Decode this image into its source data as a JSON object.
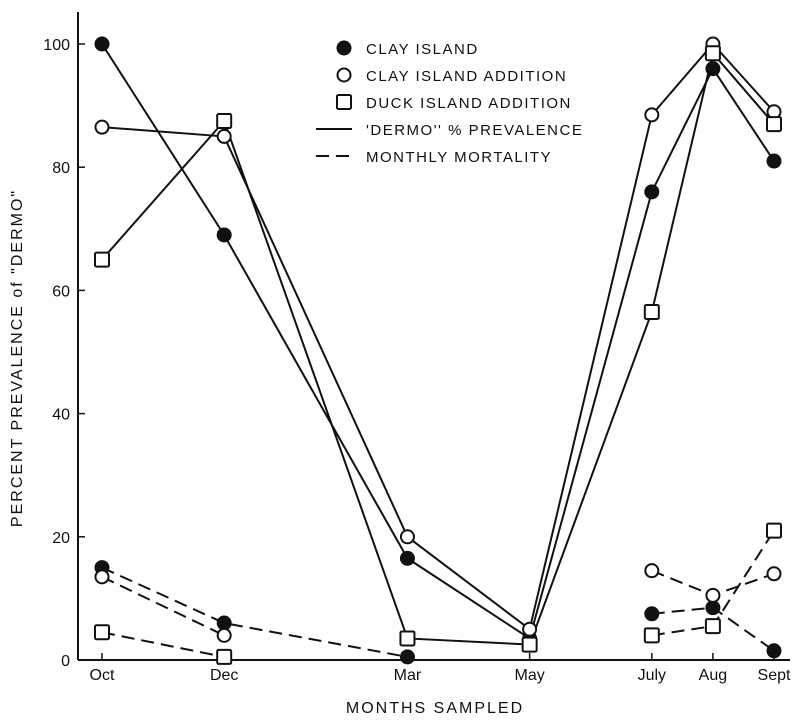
{
  "chart_data": {
    "type": "line",
    "xlabel": "MONTHS SAMPLED",
    "ylabel": "PERCENT PREVALENCE of \"DERMO\"",
    "ylim": [
      0,
      105
    ],
    "yticks": [
      0,
      20,
      40,
      60,
      80,
      100
    ],
    "categories": [
      "Oct",
      "Dec",
      "Mar",
      "May",
      "July",
      "Aug",
      "Sept"
    ],
    "month_index": [
      0,
      2,
      5,
      7,
      9,
      10,
      11
    ],
    "legend": {
      "position": "top-right",
      "entries": [
        {
          "symbol": "filled-circle",
          "label": "CLAY ISLAND"
        },
        {
          "symbol": "open-circle",
          "label": "CLAY ISLAND ADDITION"
        },
        {
          "symbol": "open-square",
          "label": "DUCK ISLAND ADDITION"
        },
        {
          "symbol": "solid-line",
          "label": "'DERMO'' % PREVALENCE"
        },
        {
          "symbol": "dashed-line",
          "label": "MONTHLY MORTALITY"
        }
      ]
    },
    "series": [
      {
        "name": "CLAY ISLAND",
        "measure": "'DERMO'' % PREVALENCE",
        "marker": "filled-circle",
        "line": "solid",
        "segments": [
          [
            100,
            69,
            16.5,
            3.5,
            76,
            96,
            81
          ]
        ]
      },
      {
        "name": "CLAY ISLAND ADDITION",
        "measure": "'DERMO'' % PREVALENCE",
        "marker": "open-circle",
        "line": "solid",
        "segments": [
          [
            86.5,
            85,
            20,
            5,
            88.5,
            100,
            89
          ]
        ]
      },
      {
        "name": "DUCK ISLAND ADDITION",
        "measure": "'DERMO'' % PREVALENCE",
        "marker": "open-square",
        "line": "solid",
        "segments": [
          [
            65,
            87.5,
            3.5,
            2.5,
            56.5,
            98.5,
            87
          ]
        ]
      },
      {
        "name": "CLAY ISLAND",
        "measure": "MONTHLY MORTALITY",
        "marker": "filled-circle",
        "line": "dashed",
        "segments": [
          [
            15,
            6,
            0.5,
            null,
            null,
            null,
            null
          ],
          [
            null,
            null,
            null,
            null,
            7.5,
            8.5,
            1.5
          ]
        ]
      },
      {
        "name": "CLAY ISLAND ADDITION",
        "measure": "MONTHLY MORTALITY",
        "marker": "open-circle",
        "line": "dashed",
        "segments": [
          [
            13.5,
            4,
            null,
            null,
            null,
            null,
            null
          ],
          [
            null,
            null,
            null,
            null,
            14.5,
            10.5,
            14
          ]
        ]
      },
      {
        "name": "DUCK ISLAND ADDITION",
        "measure": "MONTHLY MORTALITY",
        "marker": "open-square",
        "line": "dashed",
        "segments": [
          [
            4.5,
            0.5,
            null,
            null,
            null,
            null,
            null
          ],
          [
            null,
            null,
            null,
            null,
            4,
            5.5,
            21
          ]
        ]
      }
    ]
  }
}
